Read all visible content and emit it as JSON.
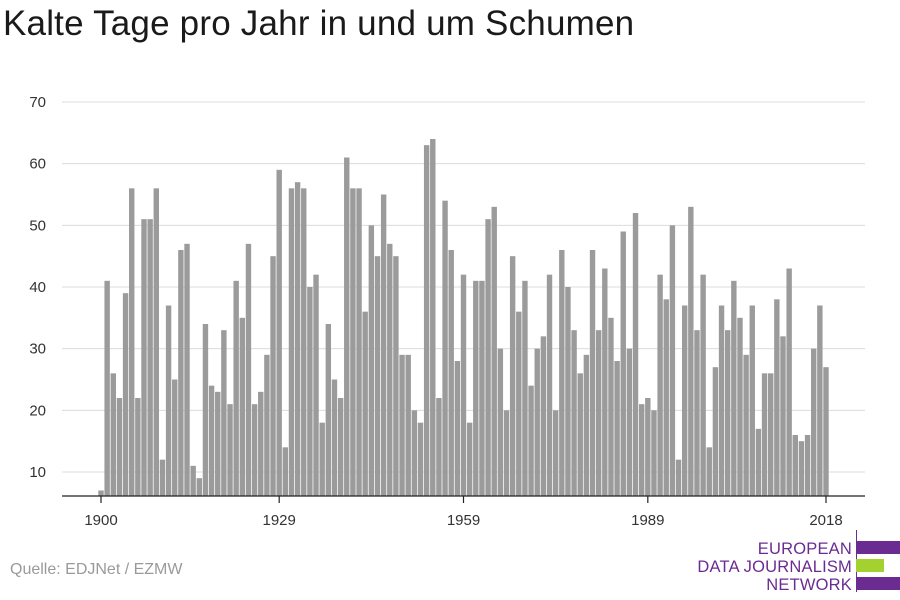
{
  "title": "Kalte Tage pro Jahr in und um Schumen",
  "source": "Quelle: EDJNet / EZMW",
  "logo": {
    "lines": [
      "EUROPEAN",
      "DATA JOURNALISM",
      "NETWORK"
    ],
    "colors": {
      "purple": "#6b2c91",
      "green": "#a3d12f"
    }
  },
  "chart_data": {
    "type": "bar",
    "xlabel": "",
    "ylabel": "",
    "x_ticks": [
      1900,
      1929,
      1959,
      1989,
      2018
    ],
    "y_ticks": [
      10,
      20,
      30,
      40,
      50,
      60,
      70
    ],
    "xlim": [
      1900,
      2018
    ],
    "ylim": [
      6,
      70
    ],
    "grid": true,
    "bar_color": "#9b9b9b",
    "series": [
      {
        "x": [
          1900,
          1901,
          1902,
          1903,
          1904,
          1905,
          1906,
          1907,
          1908,
          1909,
          1910,
          1911,
          1912,
          1913,
          1914,
          1915,
          1916,
          1917,
          1918,
          1919,
          1920,
          1921,
          1922,
          1923,
          1924,
          1925,
          1926,
          1927,
          1928,
          1929,
          1930,
          1931,
          1932,
          1933,
          1934,
          1935,
          1936,
          1937,
          1938,
          1939,
          1940,
          1941,
          1942,
          1943,
          1944,
          1945,
          1946,
          1947,
          1948,
          1949,
          1950,
          1951,
          1952,
          1953,
          1954,
          1955,
          1956,
          1957,
          1958,
          1959,
          1960,
          1961,
          1962,
          1963,
          1964,
          1965,
          1966,
          1967,
          1968,
          1969,
          1970,
          1971,
          1972,
          1973,
          1974,
          1975,
          1976,
          1977,
          1978,
          1979,
          1980,
          1981,
          1982,
          1983,
          1984,
          1985,
          1986,
          1987,
          1988,
          1989,
          1990,
          1991,
          1992,
          1993,
          1994,
          1995,
          1996,
          1997,
          1998,
          1999,
          2000,
          2001,
          2002,
          2003,
          2004,
          2005,
          2006,
          2007,
          2008,
          2009,
          2010,
          2011,
          2012,
          2013,
          2014,
          2015,
          2016,
          2017,
          2018
        ],
        "values": [
          7,
          41,
          26,
          22,
          39,
          56,
          22,
          51,
          51,
          56,
          12,
          37,
          25,
          46,
          47,
          11,
          9,
          34,
          24,
          23,
          33,
          21,
          41,
          35,
          47,
          21,
          23,
          29,
          45,
          59,
          14,
          56,
          57,
          56,
          40,
          42,
          18,
          34,
          25,
          22,
          61,
          56,
          56,
          36,
          50,
          45,
          55,
          47,
          45,
          29,
          29,
          20,
          18,
          63,
          64,
          22,
          54,
          46,
          28,
          42,
          18,
          41,
          41,
          51,
          53,
          30,
          20,
          45,
          36,
          41,
          24,
          30,
          32,
          42,
          20,
          46,
          40,
          33,
          26,
          29,
          46,
          33,
          43,
          35,
          28,
          49,
          30,
          52,
          21,
          22,
          20,
          42,
          38,
          50,
          12,
          37,
          53,
          33,
          42,
          14,
          27,
          37,
          33,
          41,
          35,
          29,
          37,
          17,
          26,
          26,
          38,
          32,
          43,
          16,
          15,
          16,
          30,
          37,
          27
        ]
      }
    ]
  }
}
